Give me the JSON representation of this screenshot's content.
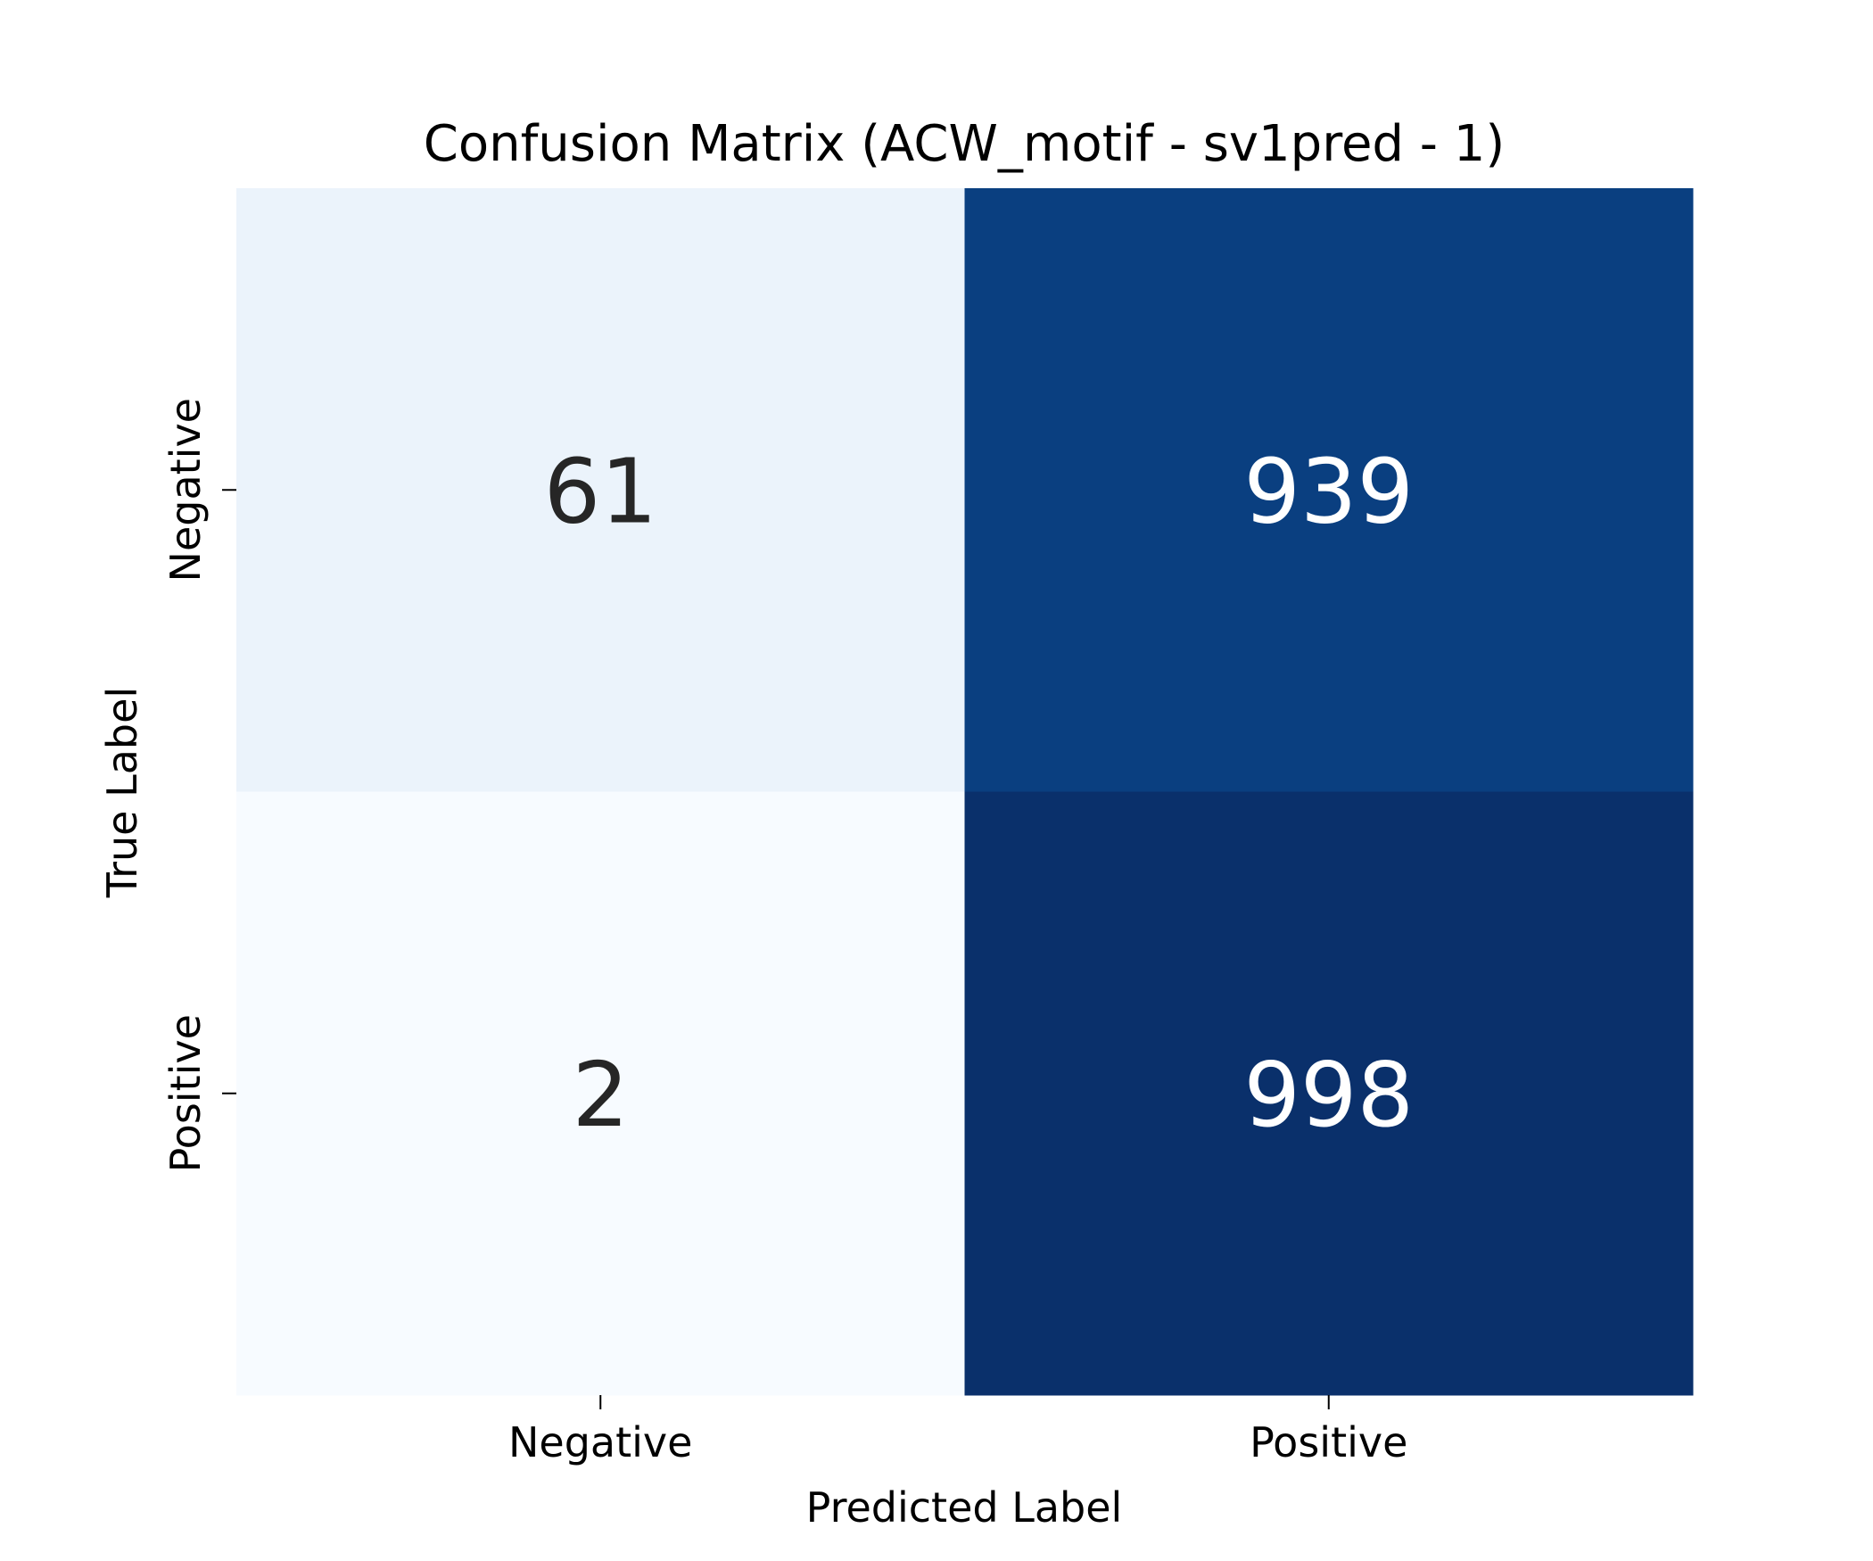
{
  "chart_data": {
    "type": "heatmap",
    "title": "Confusion Matrix (ACW_motif - sv1pred - 1)",
    "xlabel": "Predicted Label",
    "ylabel": "True Label",
    "x_categories": [
      "Negative",
      "Positive"
    ],
    "y_categories": [
      "Negative",
      "Positive"
    ],
    "values": [
      [
        61,
        939
      ],
      [
        2,
        998
      ]
    ],
    "colormap": "Blues",
    "colorbar": false,
    "colors": {
      "cells": [
        [
          "#ebf3fb",
          "#0a3f80"
        ],
        [
          "#f7fbff",
          "#0a306b"
        ]
      ],
      "text_on_light": "#262626",
      "text_on_dark": "#ffffff"
    }
  }
}
